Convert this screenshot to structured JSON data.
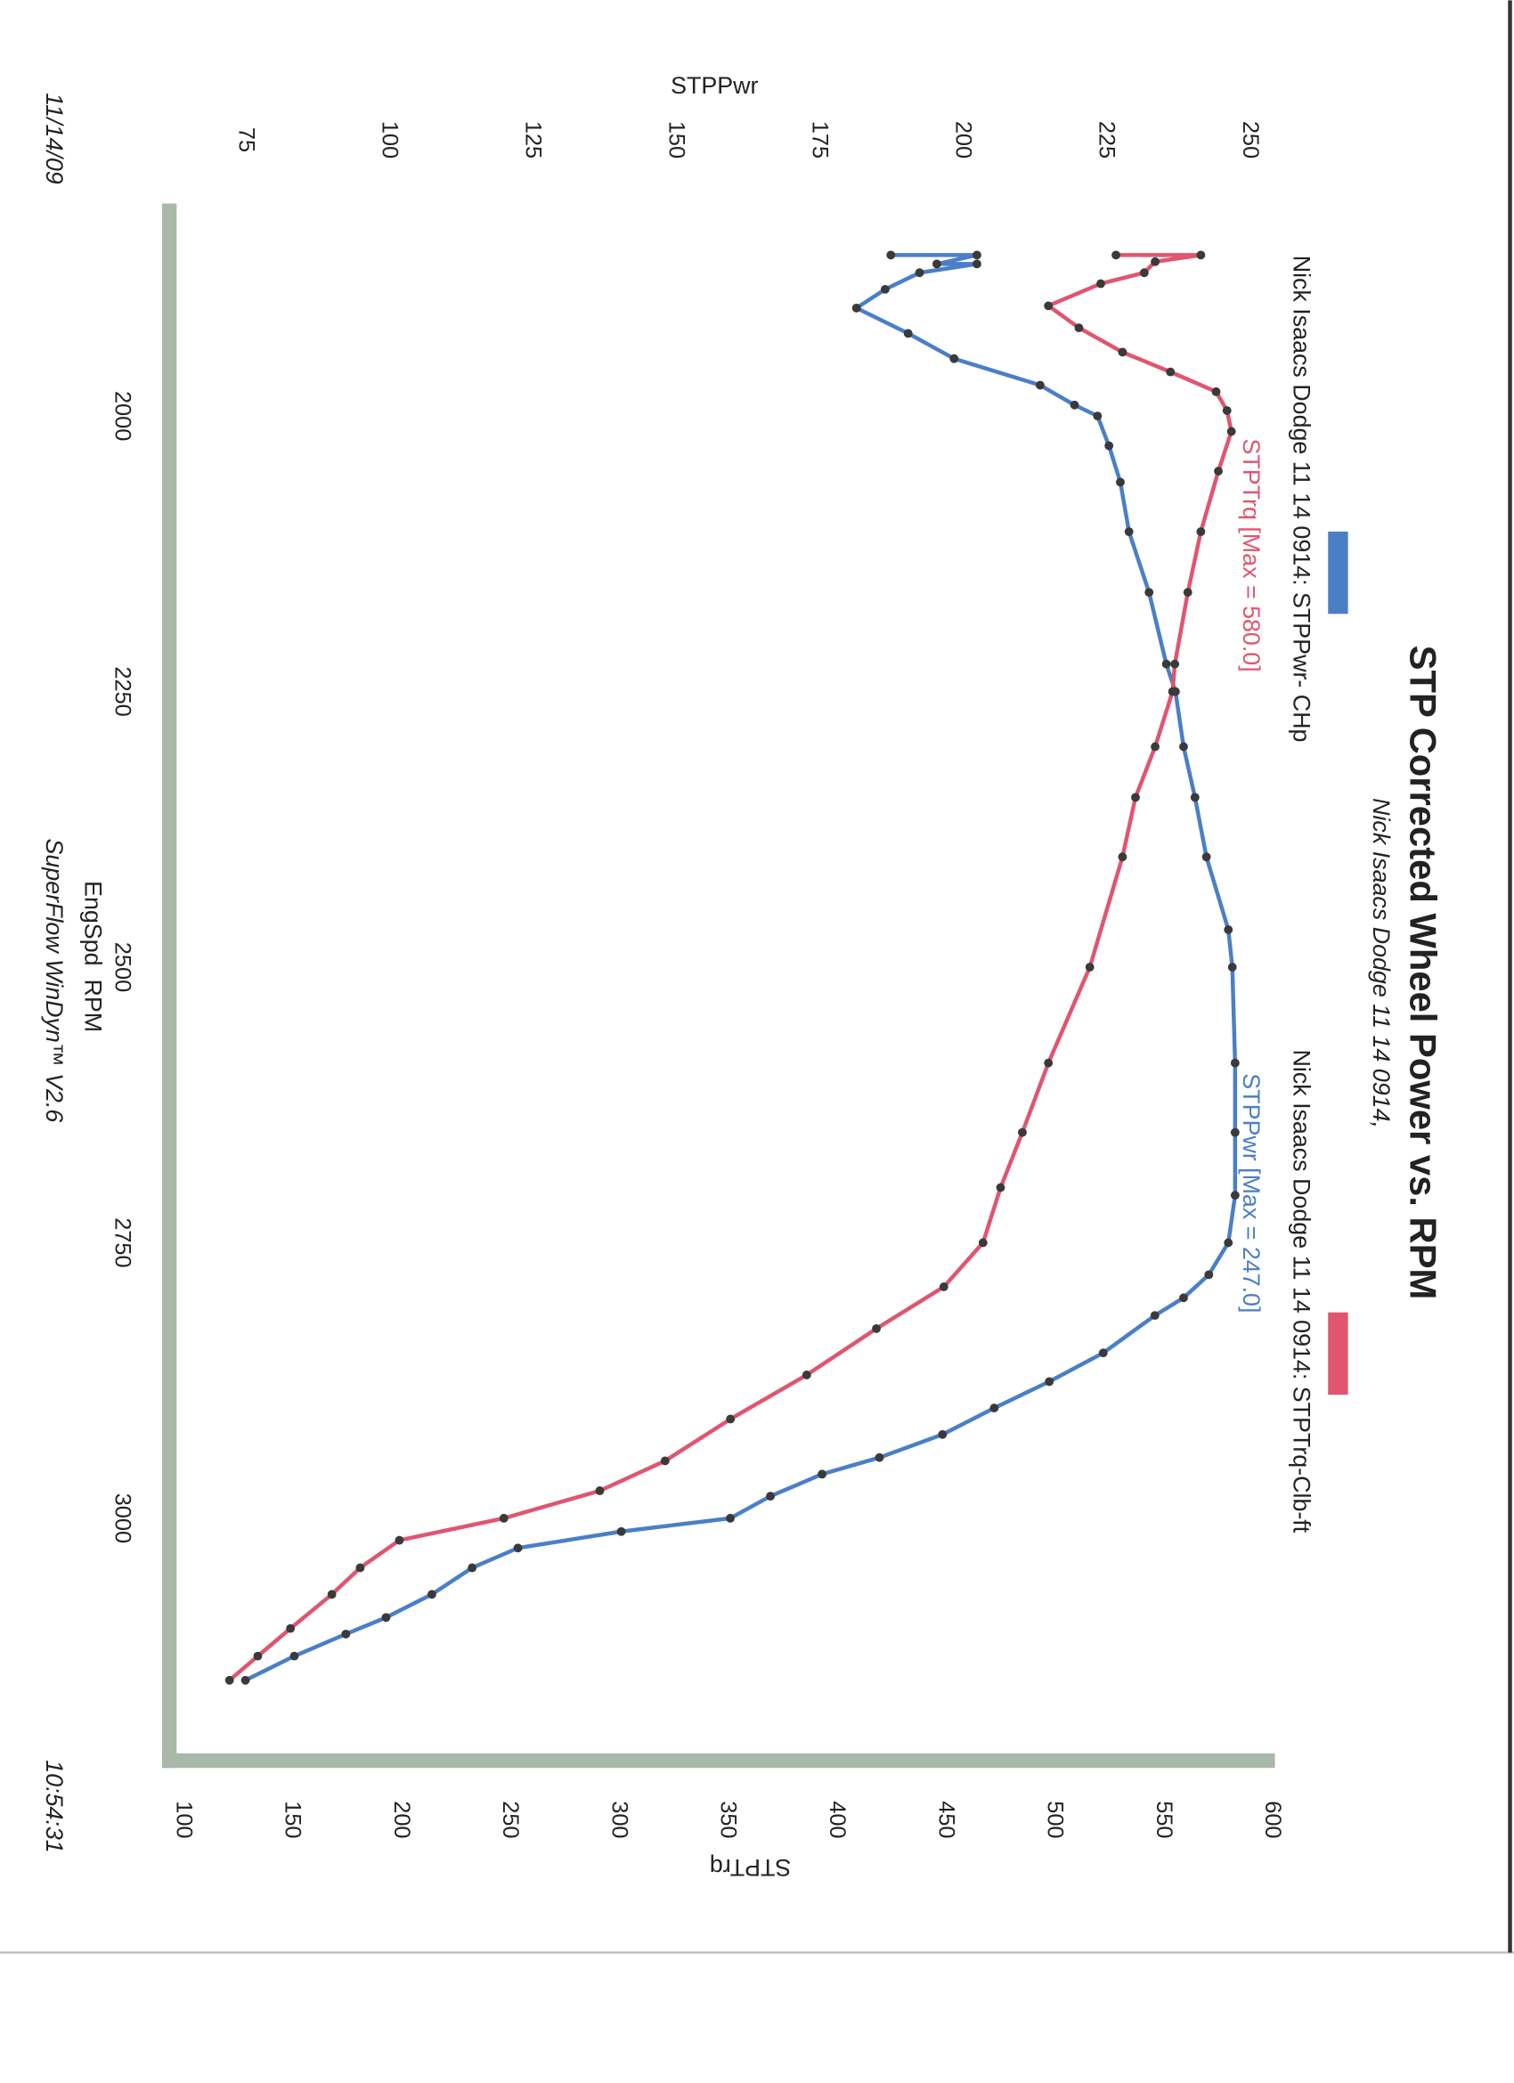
{
  "chart_data": {
    "type": "line",
    "title": "STP Corrected Wheel Power vs. RPM",
    "subtitle": "Nick Isaacs Dodge 11 14 0914,",
    "xlabel": "EngSpd  RPM",
    "ylabel_left": "STPPwr",
    "ylabel_right": "STPTrq",
    "x_ticks": [
      "2000",
      "2250",
      "2500",
      "2750",
      "3000"
    ],
    "y_left_ticks": [
      "250",
      "225",
      "200",
      "175",
      "150",
      "125",
      "100",
      "75"
    ],
    "y_right_ticks": [
      "600",
      "550",
      "500",
      "450",
      "400",
      "350",
      "300",
      "250",
      "200",
      "150",
      "100"
    ],
    "legend": [
      {
        "label": "Nick Isaacs Dodge 11 14 0914: STPPwr- CHp",
        "color": "#4a7fc8"
      },
      {
        "label": "Nick Isaacs Dodge 11 14 0914: STPTrq-Clb-ft",
        "color": "#e05570"
      }
    ],
    "annotations": {
      "trq_max": "STPTrq [Max = 580.0]",
      "pwr_max": "STPPwr [Max = 247.0]"
    },
    "series": [
      {
        "name": "STPPwr",
        "axis": "left",
        "color": "#4a7fc8",
        "points": [
          [
            1854,
            187
          ],
          [
            1854,
            202
          ],
          [
            1862,
            195
          ],
          [
            1862,
            202
          ],
          [
            1870,
            192
          ],
          [
            1885,
            186
          ],
          [
            1902,
            181
          ],
          [
            1925,
            190
          ],
          [
            1948,
            198
          ],
          [
            1972,
            213
          ],
          [
            1990,
            219
          ],
          [
            2000,
            223
          ],
          [
            2027,
            225
          ],
          [
            2060,
            227
          ],
          [
            2105,
            228.5
          ],
          [
            2160,
            232
          ],
          [
            2225,
            235
          ],
          [
            2250,
            236.6
          ],
          [
            2300,
            238
          ],
          [
            2346,
            240
          ],
          [
            2400,
            242
          ],
          [
            2466,
            245.8
          ],
          [
            2500,
            246.5
          ],
          [
            2587,
            247
          ],
          [
            2650,
            247
          ],
          [
            2707,
            247
          ],
          [
            2750,
            245.8
          ],
          [
            2779,
            242.4
          ],
          [
            2800,
            238
          ],
          [
            2816,
            233
          ],
          [
            2850,
            224
          ],
          [
            2876,
            214.6
          ],
          [
            2900,
            205
          ],
          [
            2924,
            196
          ],
          [
            2945,
            185
          ],
          [
            2960,
            175
          ],
          [
            2980,
            166
          ],
          [
            3000,
            159
          ],
          [
            3012,
            140
          ],
          [
            3027,
            122
          ],
          [
            3045,
            114
          ],
          [
            3069,
            107
          ],
          [
            3090,
            99
          ],
          [
            3105,
            92
          ],
          [
            3125,
            83
          ],
          [
            3147,
            74.5
          ]
        ]
      },
      {
        "name": "STPTrq",
        "axis": "right",
        "color": "#e05570",
        "points": [
          [
            1854,
            527
          ],
          [
            1854,
            566
          ],
          [
            1860,
            545
          ],
          [
            1870,
            540
          ],
          [
            1880,
            520
          ],
          [
            1900,
            496
          ],
          [
            1920,
            510
          ],
          [
            1942,
            530
          ],
          [
            1960,
            552
          ],
          [
            1978,
            573
          ],
          [
            1995,
            578
          ],
          [
            2014,
            580
          ],
          [
            2050,
            574
          ],
          [
            2105,
            566
          ],
          [
            2160,
            560
          ],
          [
            2225,
            554
          ],
          [
            2250,
            553
          ],
          [
            2300,
            545
          ],
          [
            2346,
            536
          ],
          [
            2400,
            530
          ],
          [
            2500,
            515
          ],
          [
            2587,
            496
          ],
          [
            2650,
            484
          ],
          [
            2700,
            474
          ],
          [
            2750,
            466
          ],
          [
            2790,
            448
          ],
          [
            2828,
            417
          ],
          [
            2870,
            385
          ],
          [
            2910,
            350
          ],
          [
            2948,
            320
          ],
          [
            2975,
            290
          ],
          [
            3000,
            246
          ],
          [
            3020,
            198
          ],
          [
            3045,
            180
          ],
          [
            3069,
            167
          ],
          [
            3100,
            148
          ],
          [
            3125,
            133
          ],
          [
            3147,
            120
          ]
        ]
      }
    ],
    "xlim": [
      1850,
      3150
    ],
    "ylim_left": [
      75,
      250
    ],
    "ylim_right": [
      100,
      600
    ]
  },
  "footer": {
    "date": "11/14/09",
    "time": "10:54:31",
    "software": "SuperFlow WinDyn™ V2.6"
  }
}
